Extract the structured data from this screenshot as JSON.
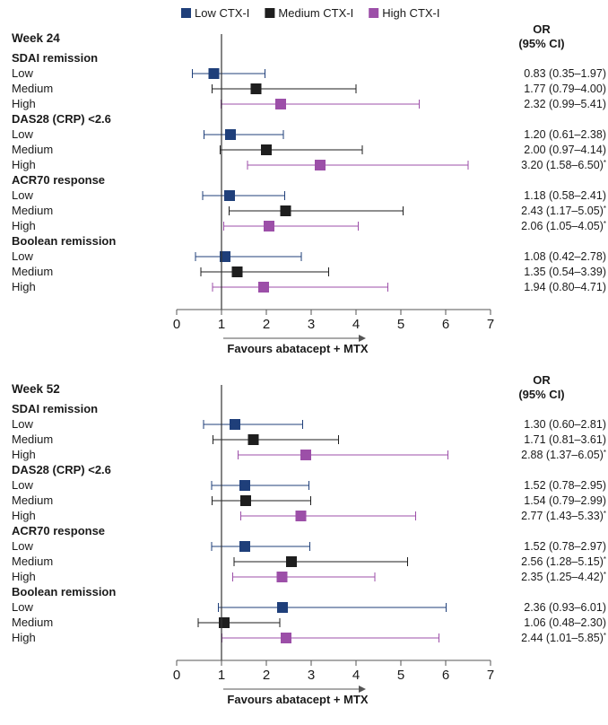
{
  "chart_data": {
    "type": "forest",
    "legend": [
      {
        "name": "Low CTX-I",
        "color": "#1f3f7a"
      },
      {
        "name": "Medium CTX-I",
        "color": "#1e1e1e"
      },
      {
        "name": "High CTX-I",
        "color": "#9c4fa8"
      }
    ],
    "or_header": [
      "OR",
      "(95% CI)"
    ],
    "xlim": [
      0,
      7
    ],
    "xticks": [
      "0",
      "1",
      "2",
      "3",
      "4",
      "5",
      "6",
      "7"
    ],
    "reference_line": 1,
    "xlabel": "Favours abatacept + MTX",
    "panels": [
      {
        "title": "Week 24",
        "groups": [
          {
            "name": "SDAI remission",
            "rows": [
              {
                "label": "Low",
                "or": 0.83,
                "lo": 0.35,
                "hi": 1.97,
                "text": "0.83 (0.35–1.97)",
                "sig": false
              },
              {
                "label": "Medium",
                "or": 1.77,
                "lo": 0.79,
                "hi": 4.0,
                "text": "1.77 (0.79–4.00)",
                "sig": false
              },
              {
                "label": "High",
                "or": 2.32,
                "lo": 0.99,
                "hi": 5.41,
                "text": "2.32 (0.99–5.41)",
                "sig": false
              }
            ]
          },
          {
            "name": "DAS28 (CRP) <2.6",
            "rows": [
              {
                "label": "Low",
                "or": 1.2,
                "lo": 0.61,
                "hi": 2.38,
                "text": "1.20 (0.61–2.38)",
                "sig": false
              },
              {
                "label": "Medium",
                "or": 2.0,
                "lo": 0.97,
                "hi": 4.14,
                "text": "2.00 (0.97–4.14)",
                "sig": false
              },
              {
                "label": "High",
                "or": 3.2,
                "lo": 1.58,
                "hi": 6.5,
                "text": "3.20 (1.58–6.50)",
                "sig": true
              }
            ]
          },
          {
            "name": "ACR70 response",
            "rows": [
              {
                "label": "Low",
                "or": 1.18,
                "lo": 0.58,
                "hi": 2.41,
                "text": "1.18 (0.58–2.41)",
                "sig": false
              },
              {
                "label": "Medium",
                "or": 2.43,
                "lo": 1.17,
                "hi": 5.05,
                "text": "2.43 (1.17–5.05)",
                "sig": true
              },
              {
                "label": "High",
                "or": 2.06,
                "lo": 1.05,
                "hi": 4.05,
                "text": "2.06 (1.05–4.05)",
                "sig": true
              }
            ]
          },
          {
            "name": "Boolean remission",
            "rows": [
              {
                "label": "Low",
                "or": 1.08,
                "lo": 0.42,
                "hi": 2.78,
                "text": "1.08 (0.42–2.78)",
                "sig": false
              },
              {
                "label": "Medium",
                "or": 1.35,
                "lo": 0.54,
                "hi": 3.39,
                "text": "1.35 (0.54–3.39)",
                "sig": false
              },
              {
                "label": "High",
                "or": 1.94,
                "lo": 0.8,
                "hi": 4.71,
                "text": "1.94 (0.80–4.71)",
                "sig": false
              }
            ]
          }
        ]
      },
      {
        "title": "Week 52",
        "groups": [
          {
            "name": "SDAI remission",
            "rows": [
              {
                "label": "Low",
                "or": 1.3,
                "lo": 0.6,
                "hi": 2.81,
                "text": "1.30 (0.60–2.81)",
                "sig": false
              },
              {
                "label": "Medium",
                "or": 1.71,
                "lo": 0.81,
                "hi": 3.61,
                "text": "1.71 (0.81–3.61)",
                "sig": false
              },
              {
                "label": "High",
                "or": 2.88,
                "lo": 1.37,
                "hi": 6.05,
                "text": "2.88 (1.37–6.05)",
                "sig": true
              }
            ]
          },
          {
            "name": "DAS28 (CRP) <2.6",
            "rows": [
              {
                "label": "Low",
                "or": 1.52,
                "lo": 0.78,
                "hi": 2.95,
                "text": "1.52 (0.78–2.95)",
                "sig": false
              },
              {
                "label": "Medium",
                "or": 1.54,
                "lo": 0.79,
                "hi": 2.99,
                "text": "1.54 (0.79–2.99)",
                "sig": false
              },
              {
                "label": "High",
                "or": 2.77,
                "lo": 1.43,
                "hi": 5.33,
                "text": "2.77 (1.43–5.33)",
                "sig": true
              }
            ]
          },
          {
            "name": "ACR70 response",
            "rows": [
              {
                "label": "Low",
                "or": 1.52,
                "lo": 0.78,
                "hi": 2.97,
                "text": "1.52 (0.78–2.97)",
                "sig": false
              },
              {
                "label": "Medium",
                "or": 2.56,
                "lo": 1.28,
                "hi": 5.15,
                "text": "2.56 (1.28–5.15)",
                "sig": true
              },
              {
                "label": "High",
                "or": 2.35,
                "lo": 1.25,
                "hi": 4.42,
                "text": "2.35 (1.25–4.42)",
                "sig": true
              }
            ]
          },
          {
            "name": "Boolean remission",
            "rows": [
              {
                "label": "Low",
                "or": 2.36,
                "lo": 0.93,
                "hi": 6.01,
                "text": "2.36 (0.93–6.01)",
                "sig": false
              },
              {
                "label": "Medium",
                "or": 1.06,
                "lo": 0.48,
                "hi": 2.3,
                "text": "1.06 (0.48–2.30)",
                "sig": false
              },
              {
                "label": "High",
                "or": 2.44,
                "lo": 1.01,
                "hi": 5.85,
                "text": "2.44 (1.01–5.85)",
                "sig": true
              }
            ]
          }
        ]
      }
    ]
  }
}
